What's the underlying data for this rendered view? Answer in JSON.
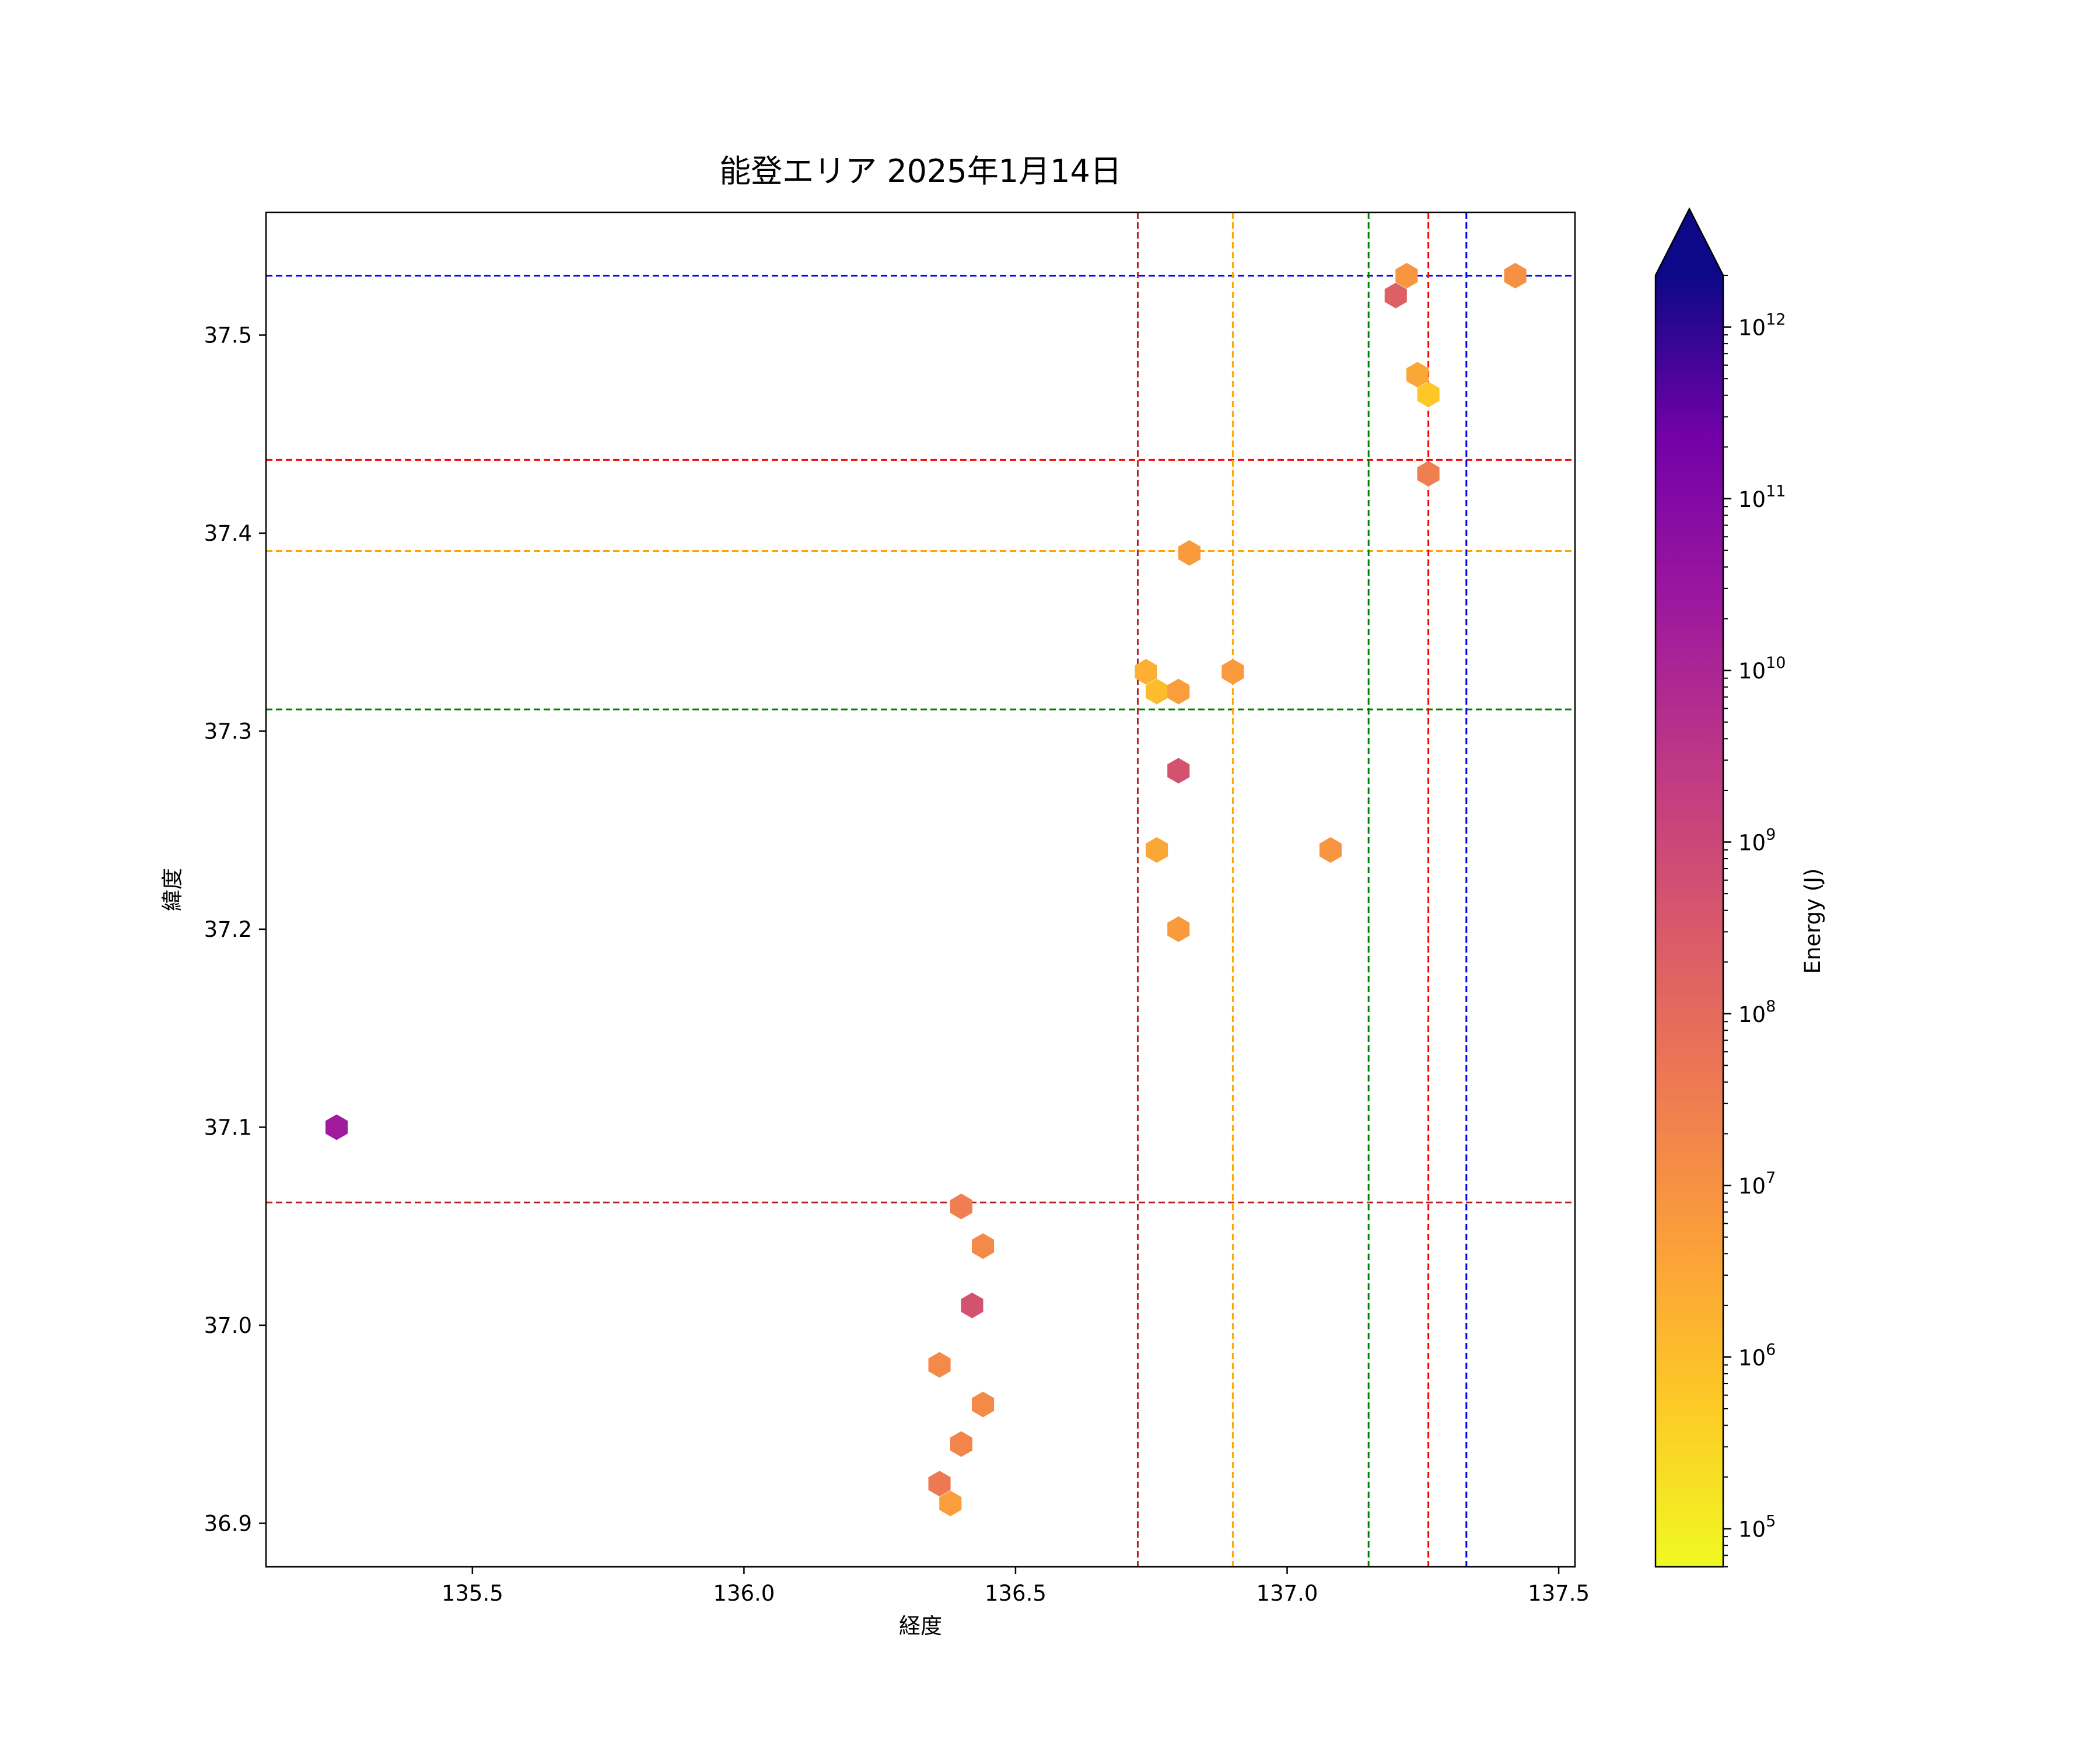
{
  "chart_data": {
    "type": "scatter",
    "subtype": "hexbin",
    "title": "能登エリア 2025年1月14日",
    "xlabel": "経度",
    "ylabel": "緯度",
    "xlim": [
      135.12,
      137.53
    ],
    "ylim": [
      36.878,
      37.562
    ],
    "xticks": [
      135.5,
      136.0,
      136.5,
      137.0,
      137.5
    ],
    "xtick_labels": [
      "135.5",
      "136.0",
      "136.5",
      "137.0",
      "137.5"
    ],
    "yticks": [
      36.9,
      37.0,
      37.1,
      37.2,
      37.3,
      37.4,
      37.5
    ],
    "ytick_labels": [
      "36.9",
      "37.0",
      "37.1",
      "37.2",
      "37.3",
      "37.4",
      "37.5"
    ],
    "grid": false,
    "colorbar": {
      "label": "Energy (J)",
      "scale": "log",
      "colormap": "plasma_r",
      "range": [
        60000,
        2000000000000
      ],
      "extend": "max",
      "ticks": [
        {
          "value": 100000,
          "base": "10",
          "exp": "5"
        },
        {
          "value": 1000000,
          "base": "10",
          "exp": "6"
        },
        {
          "value": 10000000,
          "base": "10",
          "exp": "7"
        },
        {
          "value": 100000000,
          "base": "10",
          "exp": "8"
        },
        {
          "value": 1000000000,
          "base": "10",
          "exp": "9"
        },
        {
          "value": 10000000000,
          "base": "10",
          "exp": "10"
        },
        {
          "value": 100000000000,
          "base": "10",
          "exp": "11"
        },
        {
          "value": 1000000000000,
          "base": "10",
          "exp": "12"
        }
      ]
    },
    "reference_lines": [
      {
        "orientation": "horizontal",
        "value": 37.53,
        "color": "#0000ff"
      },
      {
        "orientation": "horizontal",
        "value": 37.437,
        "color": "#ff0000"
      },
      {
        "orientation": "horizontal",
        "value": 37.391,
        "color": "#ffa500"
      },
      {
        "orientation": "horizontal",
        "value": 37.311,
        "color": "#008000"
      },
      {
        "orientation": "horizontal",
        "value": 37.062,
        "color": "#b22222"
      },
      {
        "orientation": "vertical",
        "value": 136.725,
        "color": "#b22222"
      },
      {
        "orientation": "vertical",
        "value": 136.9,
        "color": "#ffa500"
      },
      {
        "orientation": "vertical",
        "value": 137.15,
        "color": "#008000"
      },
      {
        "orientation": "vertical",
        "value": 137.26,
        "color": "#ff0000"
      },
      {
        "orientation": "vertical",
        "value": 137.33,
        "color": "#0000ff"
      }
    ],
    "points": [
      {
        "x": 135.25,
        "y": 37.1,
        "energy": 20000000000
      },
      {
        "x": 136.4,
        "y": 37.06,
        "energy": 30000000
      },
      {
        "x": 136.44,
        "y": 37.04,
        "energy": 15000000
      },
      {
        "x": 136.42,
        "y": 37.01,
        "energy": 500000000
      },
      {
        "x": 136.36,
        "y": 36.98,
        "energy": 15000000
      },
      {
        "x": 136.44,
        "y": 36.96,
        "energy": 15000000
      },
      {
        "x": 136.4,
        "y": 36.94,
        "energy": 20000000
      },
      {
        "x": 136.36,
        "y": 36.92,
        "energy": 40000000
      },
      {
        "x": 136.38,
        "y": 36.91,
        "energy": 5000000
      },
      {
        "x": 136.74,
        "y": 37.33,
        "energy": 2000000
      },
      {
        "x": 136.76,
        "y": 37.32,
        "energy": 1000000
      },
      {
        "x": 136.8,
        "y": 37.32,
        "energy": 5000000
      },
      {
        "x": 136.9,
        "y": 37.33,
        "energy": 6000000
      },
      {
        "x": 136.82,
        "y": 37.39,
        "energy": 6000000
      },
      {
        "x": 136.8,
        "y": 37.28,
        "energy": 500000000
      },
      {
        "x": 136.76,
        "y": 37.24,
        "energy": 3000000
      },
      {
        "x": 137.08,
        "y": 37.24,
        "energy": 8000000
      },
      {
        "x": 136.8,
        "y": 37.2,
        "energy": 6000000
      },
      {
        "x": 137.22,
        "y": 37.53,
        "energy": 8000000
      },
      {
        "x": 137.42,
        "y": 37.53,
        "energy": 10000000
      },
      {
        "x": 137.2,
        "y": 37.52,
        "energy": 200000000
      },
      {
        "x": 137.24,
        "y": 37.48,
        "energy": 3000000
      },
      {
        "x": 137.26,
        "y": 37.47,
        "energy": 600000
      },
      {
        "x": 137.26,
        "y": 37.43,
        "energy": 30000000
      }
    ]
  }
}
